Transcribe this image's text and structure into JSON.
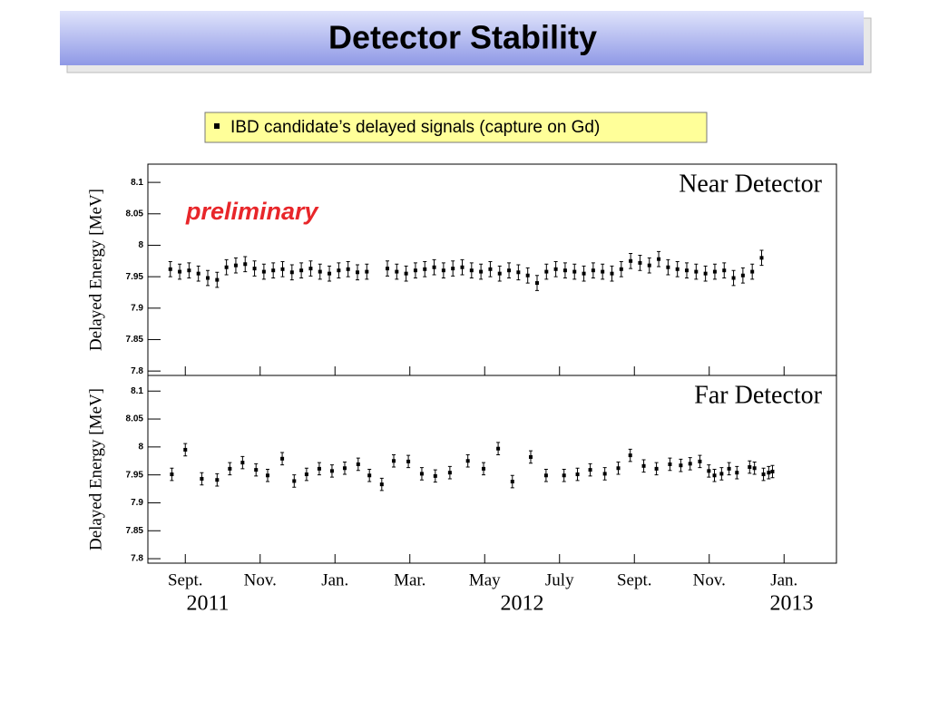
{
  "slide": {
    "title": "Detector Stability",
    "note": "IBD candidate’s delayed signals (capture on Gd)"
  },
  "chart_data": [
    {
      "type": "scatter",
      "title": "Near Detector",
      "annotation": "preliminary",
      "y_label": "Delayed Energy [MeV]",
      "xlim": [
        8,
        26.4
      ],
      "ylim": [
        7.793,
        8.129
      ],
      "yticks": [
        7.8,
        7.85,
        7.9,
        7.95,
        8,
        8.05,
        8.1
      ],
      "color": "#000000",
      "error": 0.012,
      "x": [
        8.6,
        8.85,
        9.1,
        9.35,
        9.6,
        9.85,
        10.1,
        10.35,
        10.6,
        10.85,
        11.1,
        11.35,
        11.6,
        11.85,
        12.1,
        12.35,
        12.6,
        12.85,
        13.1,
        13.35,
        13.6,
        13.85,
        14.4,
        14.65,
        14.9,
        15.15,
        15.4,
        15.65,
        15.9,
        16.15,
        16.4,
        16.65,
        16.9,
        17.15,
        17.4,
        17.65,
        17.9,
        18.15,
        18.4,
        18.65,
        18.9,
        19.15,
        19.4,
        19.65,
        19.9,
        20.15,
        20.4,
        20.65,
        20.9,
        21.15,
        21.4,
        21.65,
        21.9,
        22.15,
        22.4,
        22.65,
        22.9,
        23.15,
        23.4,
        23.65,
        23.9,
        24.15,
        24.4
      ],
      "values": [
        7.962,
        7.958,
        7.96,
        7.955,
        7.948,
        7.945,
        7.965,
        7.968,
        7.97,
        7.963,
        7.958,
        7.96,
        7.962,
        7.957,
        7.96,
        7.963,
        7.958,
        7.955,
        7.96,
        7.962,
        7.957,
        7.958,
        7.963,
        7.958,
        7.955,
        7.96,
        7.962,
        7.965,
        7.96,
        7.963,
        7.965,
        7.96,
        7.958,
        7.962,
        7.955,
        7.96,
        7.957,
        7.952,
        7.94,
        7.958,
        7.962,
        7.96,
        7.958,
        7.955,
        7.96,
        7.958,
        7.955,
        7.962,
        7.975,
        7.972,
        7.968,
        7.978,
        7.965,
        7.962,
        7.96,
        7.958,
        7.955,
        7.958,
        7.96,
        7.948,
        7.952,
        7.958,
        7.98
      ]
    },
    {
      "type": "scatter",
      "title": "Far Detector",
      "y_label": "Delayed Energy [MeV]",
      "xlim": [
        8,
        26.4
      ],
      "ylim": [
        7.792,
        8.128
      ],
      "yticks": [
        7.8,
        7.85,
        7.9,
        7.95,
        8,
        8.05,
        8.1
      ],
      "xticks": [
        {
          "value": 9,
          "label": "Sept."
        },
        {
          "value": 11,
          "label": "Nov."
        },
        {
          "value": 13,
          "label": "Jan."
        },
        {
          "value": 15,
          "label": "Mar."
        },
        {
          "value": 17,
          "label": "May"
        },
        {
          "value": 19,
          "label": "July"
        },
        {
          "value": 21,
          "label": "Sept."
        },
        {
          "value": 23,
          "label": "Nov."
        },
        {
          "value": 25,
          "label": "Jan."
        }
      ],
      "year_labels": [
        "2011",
        "2012",
        "2013"
      ],
      "color": "#000000",
      "error": 0.011,
      "x": [
        8.64,
        9.0,
        9.44,
        9.85,
        10.19,
        10.53,
        10.89,
        11.2,
        11.59,
        11.91,
        12.24,
        12.58,
        12.92,
        13.26,
        13.62,
        13.92,
        14.25,
        14.57,
        14.96,
        15.32,
        15.68,
        16.07,
        16.55,
        16.97,
        17.36,
        17.74,
        18.23,
        18.64,
        19.12,
        19.48,
        19.82,
        20.21,
        20.57,
        20.89,
        21.25,
        21.59,
        21.95,
        22.24,
        22.49,
        22.75,
        22.99,
        23.14,
        23.33,
        23.53,
        23.74,
        24.08,
        24.21,
        24.45,
        24.59,
        24.69
      ],
      "values": [
        7.951,
        7.995,
        7.943,
        7.941,
        7.961,
        7.972,
        7.959,
        7.949,
        7.979,
        7.939,
        7.951,
        7.961,
        7.957,
        7.962,
        7.969,
        7.949,
        7.933,
        7.975,
        7.974,
        7.952,
        7.948,
        7.954,
        7.975,
        7.961,
        7.997,
        7.938,
        7.982,
        7.949,
        7.949,
        7.951,
        7.959,
        7.952,
        7.962,
        7.985,
        7.966,
        7.961,
        7.969,
        7.967,
        7.97,
        7.974,
        7.957,
        7.949,
        7.952,
        7.961,
        7.954,
        7.964,
        7.962,
        7.951,
        7.954,
        7.956
      ]
    }
  ]
}
